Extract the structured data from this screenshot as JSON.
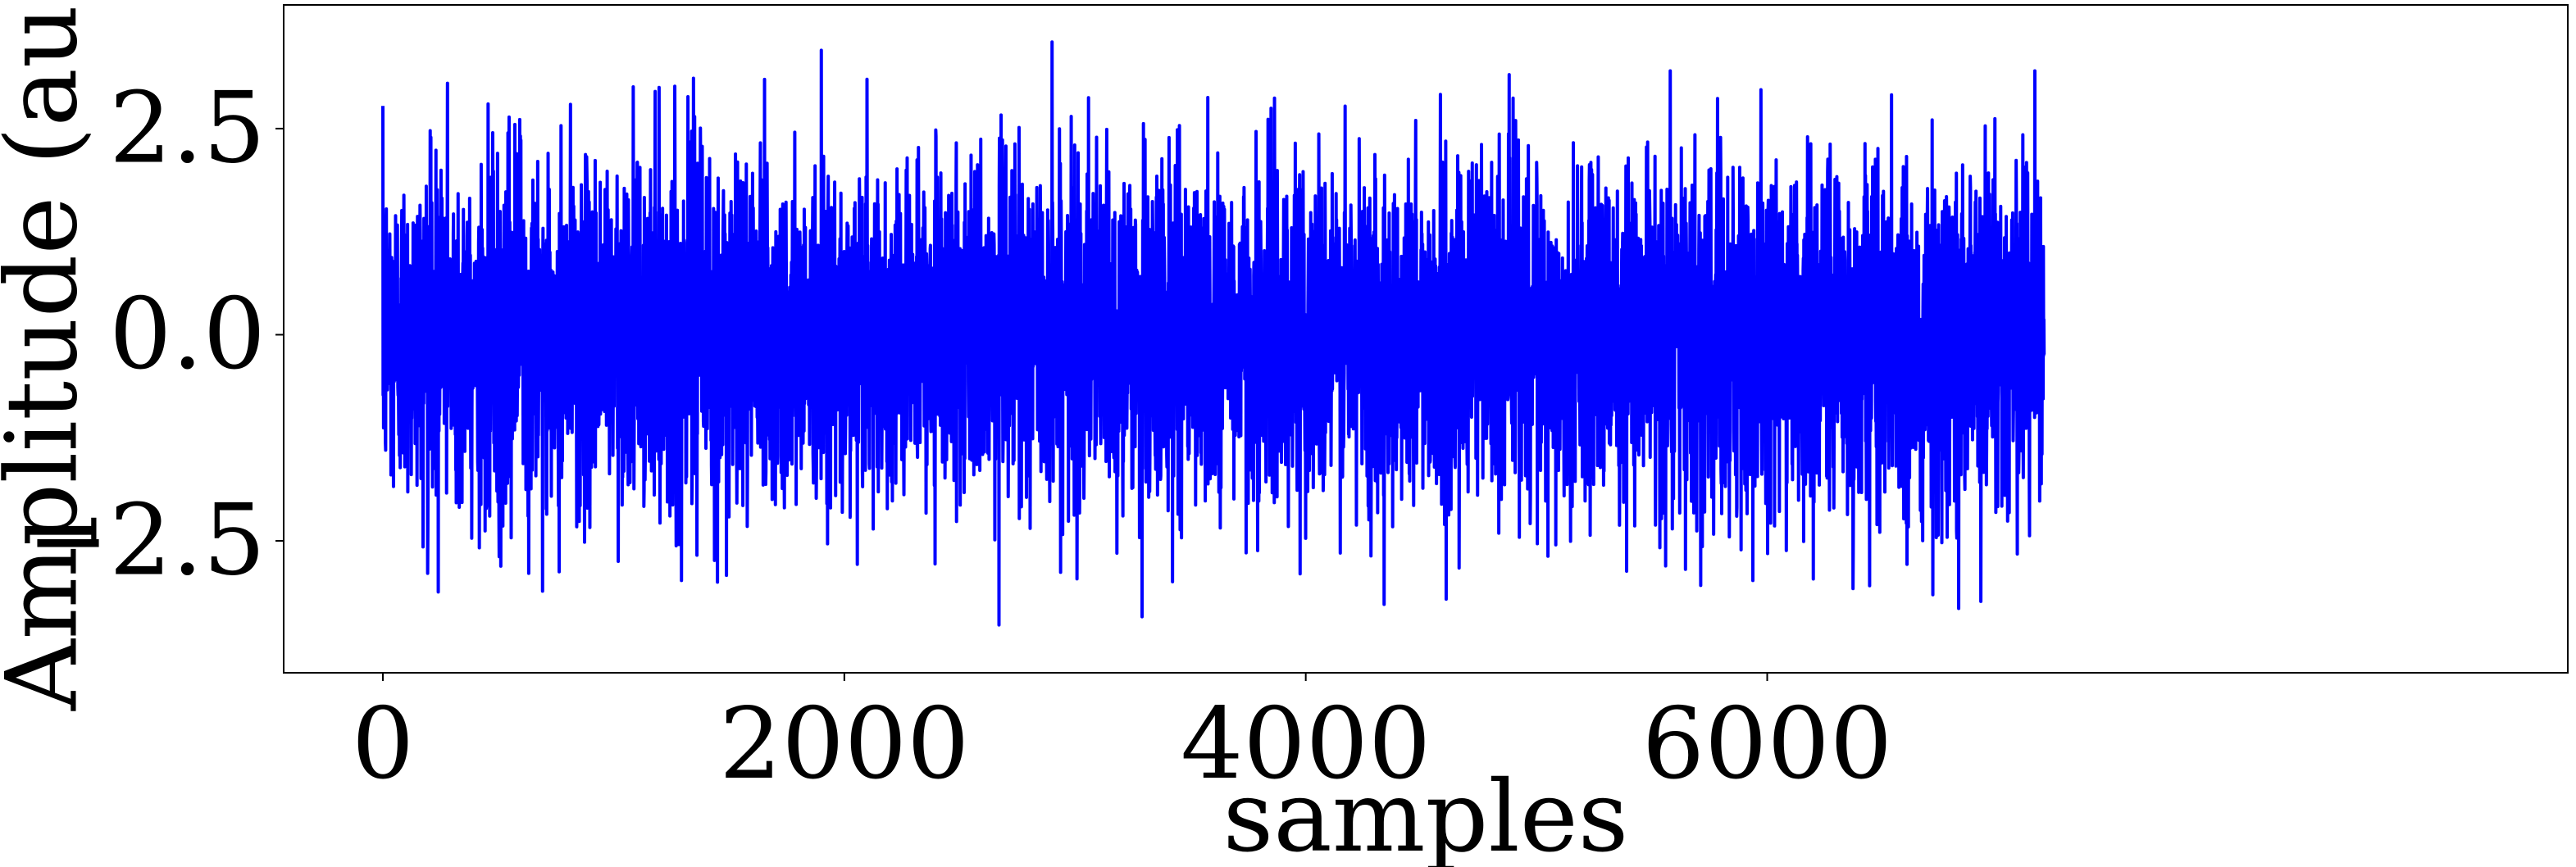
{
  "chart_data": {
    "type": "line",
    "title": "",
    "xlabel": "samples",
    "ylabel": "Amplitude (au)",
    "xlim": [
      -430,
      9470
    ],
    "ylim": [
      -4.1,
      4.0
    ],
    "xticks": [
      0,
      2000,
      4000,
      6000
    ],
    "xtick_labels": [
      "0",
      "2000",
      "4000",
      "6000"
    ],
    "yticks": [
      -2.5,
      0.0,
      2.5
    ],
    "ytick_labels": [
      "−2.5",
      "0.0",
      "2.5"
    ],
    "grid": false,
    "legend": "none",
    "series": [
      {
        "color": "#0000ff",
        "x_start": 0,
        "x_end": 7200,
        "n_samples": 7200,
        "mean": 0.0,
        "std": 1.0,
        "max_value": 3.55,
        "min_value": -3.52,
        "peaks": [
          {
            "x": 280,
            "y": 3.05
          },
          {
            "x": 1180,
            "y": 2.95
          },
          {
            "x": 1900,
            "y": 3.45
          },
          {
            "x": 2900,
            "y": 3.55
          },
          {
            "x": 5580,
            "y": 3.2
          },
          {
            "x": 7160,
            "y": 3.2
          },
          {
            "x": 2670,
            "y": -3.52
          },
          {
            "x": 3290,
            "y": -3.42
          },
          {
            "x": 4340,
            "y": -3.27
          },
          {
            "x": 6830,
            "y": -3.32
          },
          {
            "x": 240,
            "y": -3.12
          },
          {
            "x": 1450,
            "y": -3.0
          }
        ]
      }
    ]
  }
}
